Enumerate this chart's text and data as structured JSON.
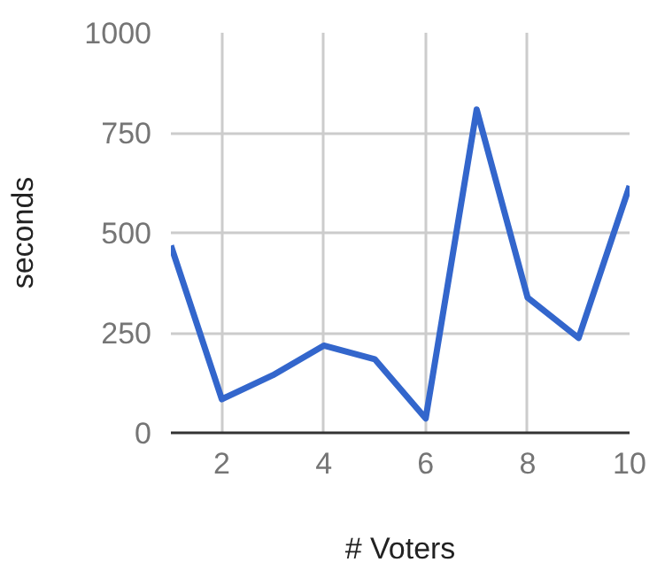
{
  "chart_data": {
    "type": "line",
    "xlabel": "# Voters",
    "ylabel": "seconds",
    "x": [
      1,
      2,
      3,
      4,
      5,
      6,
      7,
      8,
      9,
      10
    ],
    "series": [
      {
        "color": "#3366cc",
        "values": [
          468,
          84,
          144,
          218,
          184,
          36,
          808,
          338,
          237,
          617
        ]
      }
    ],
    "xlim": [
      1,
      10
    ],
    "xticks": [
      2,
      4,
      6,
      8,
      10
    ],
    "ylim": [
      0,
      1000
    ],
    "yticks": [
      0,
      250,
      500,
      750,
      1000
    ],
    "grid": true
  }
}
